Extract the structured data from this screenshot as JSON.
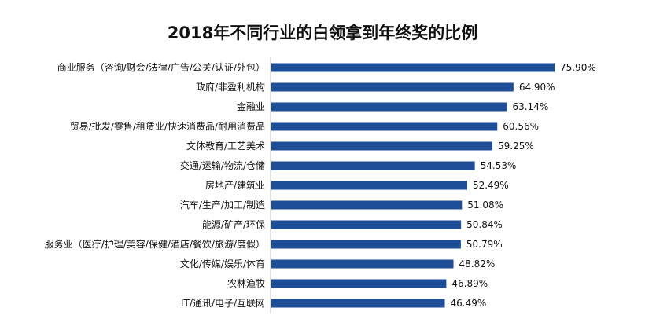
{
  "chart_data": {
    "type": "bar",
    "orientation": "horizontal",
    "title": "2018年不同行业的白领拿到年终奖的比例",
    "categories": [
      "商业服务（咨询/财会/法律/广告/公关/认证/外包）",
      "政府/非盈利机构",
      "金融业",
      "贸易/批发/零售/租赁业/快速消费品/耐用消费品",
      "文体教育/工艺美术",
      "交通/运输/物流/仓储",
      "房地产/建筑业",
      "汽车/生产/加工/制造",
      "能源/矿产/环保",
      "服务业（医疗/护理/美容/保健/酒店/餐饮/旅游/度假）",
      "文化/传媒/娱乐/体育",
      "农林渔牧",
      "IT/通讯/电子/互联网"
    ],
    "values": [
      75.9,
      64.9,
      63.14,
      60.56,
      59.25,
      54.53,
      52.49,
      51.08,
      50.84,
      50.79,
      48.82,
      46.89,
      46.49
    ],
    "value_labels": [
      "75.90%",
      "64.90%",
      "63.14%",
      "60.56%",
      "59.25%",
      "54.53%",
      "52.49%",
      "51.08%",
      "50.84%",
      "50.79%",
      "48.82%",
      "46.89%",
      "46.49%"
    ],
    "xlim": [
      0,
      100
    ],
    "unit": "%",
    "bar_color": "#1f4e99",
    "grid": false,
    "legend": "none"
  }
}
